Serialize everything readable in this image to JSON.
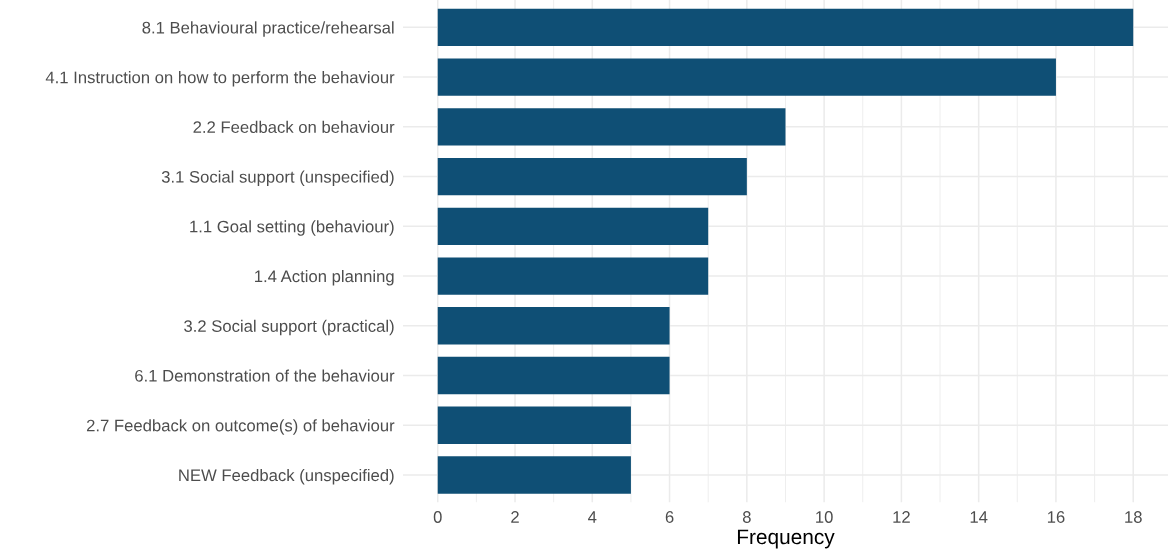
{
  "chart_data": {
    "type": "bar",
    "orientation": "horizontal",
    "xlabel": "Frequency",
    "categories": [
      "8.1 Behavioural practice/rehearsal",
      "4.1 Instruction on how to perform the behaviour",
      "2.2 Feedback on behaviour",
      "3.1 Social support (unspecified)",
      "1.1 Goal setting (behaviour)",
      "1.4 Action planning",
      "3.2 Social support (practical)",
      "6.1 Demonstration of the behaviour",
      "2.7 Feedback on outcome(s) of behaviour",
      "NEW Feedback (unspecified)"
    ],
    "values": [
      18,
      16,
      9,
      8,
      7,
      7,
      6,
      6,
      5,
      5
    ],
    "color": "#0f4f75",
    "xlim": [
      -0.9,
      18.9
    ],
    "xticks": [
      0,
      2,
      4,
      6,
      8,
      10,
      12,
      14,
      16,
      18
    ],
    "grid": true
  }
}
